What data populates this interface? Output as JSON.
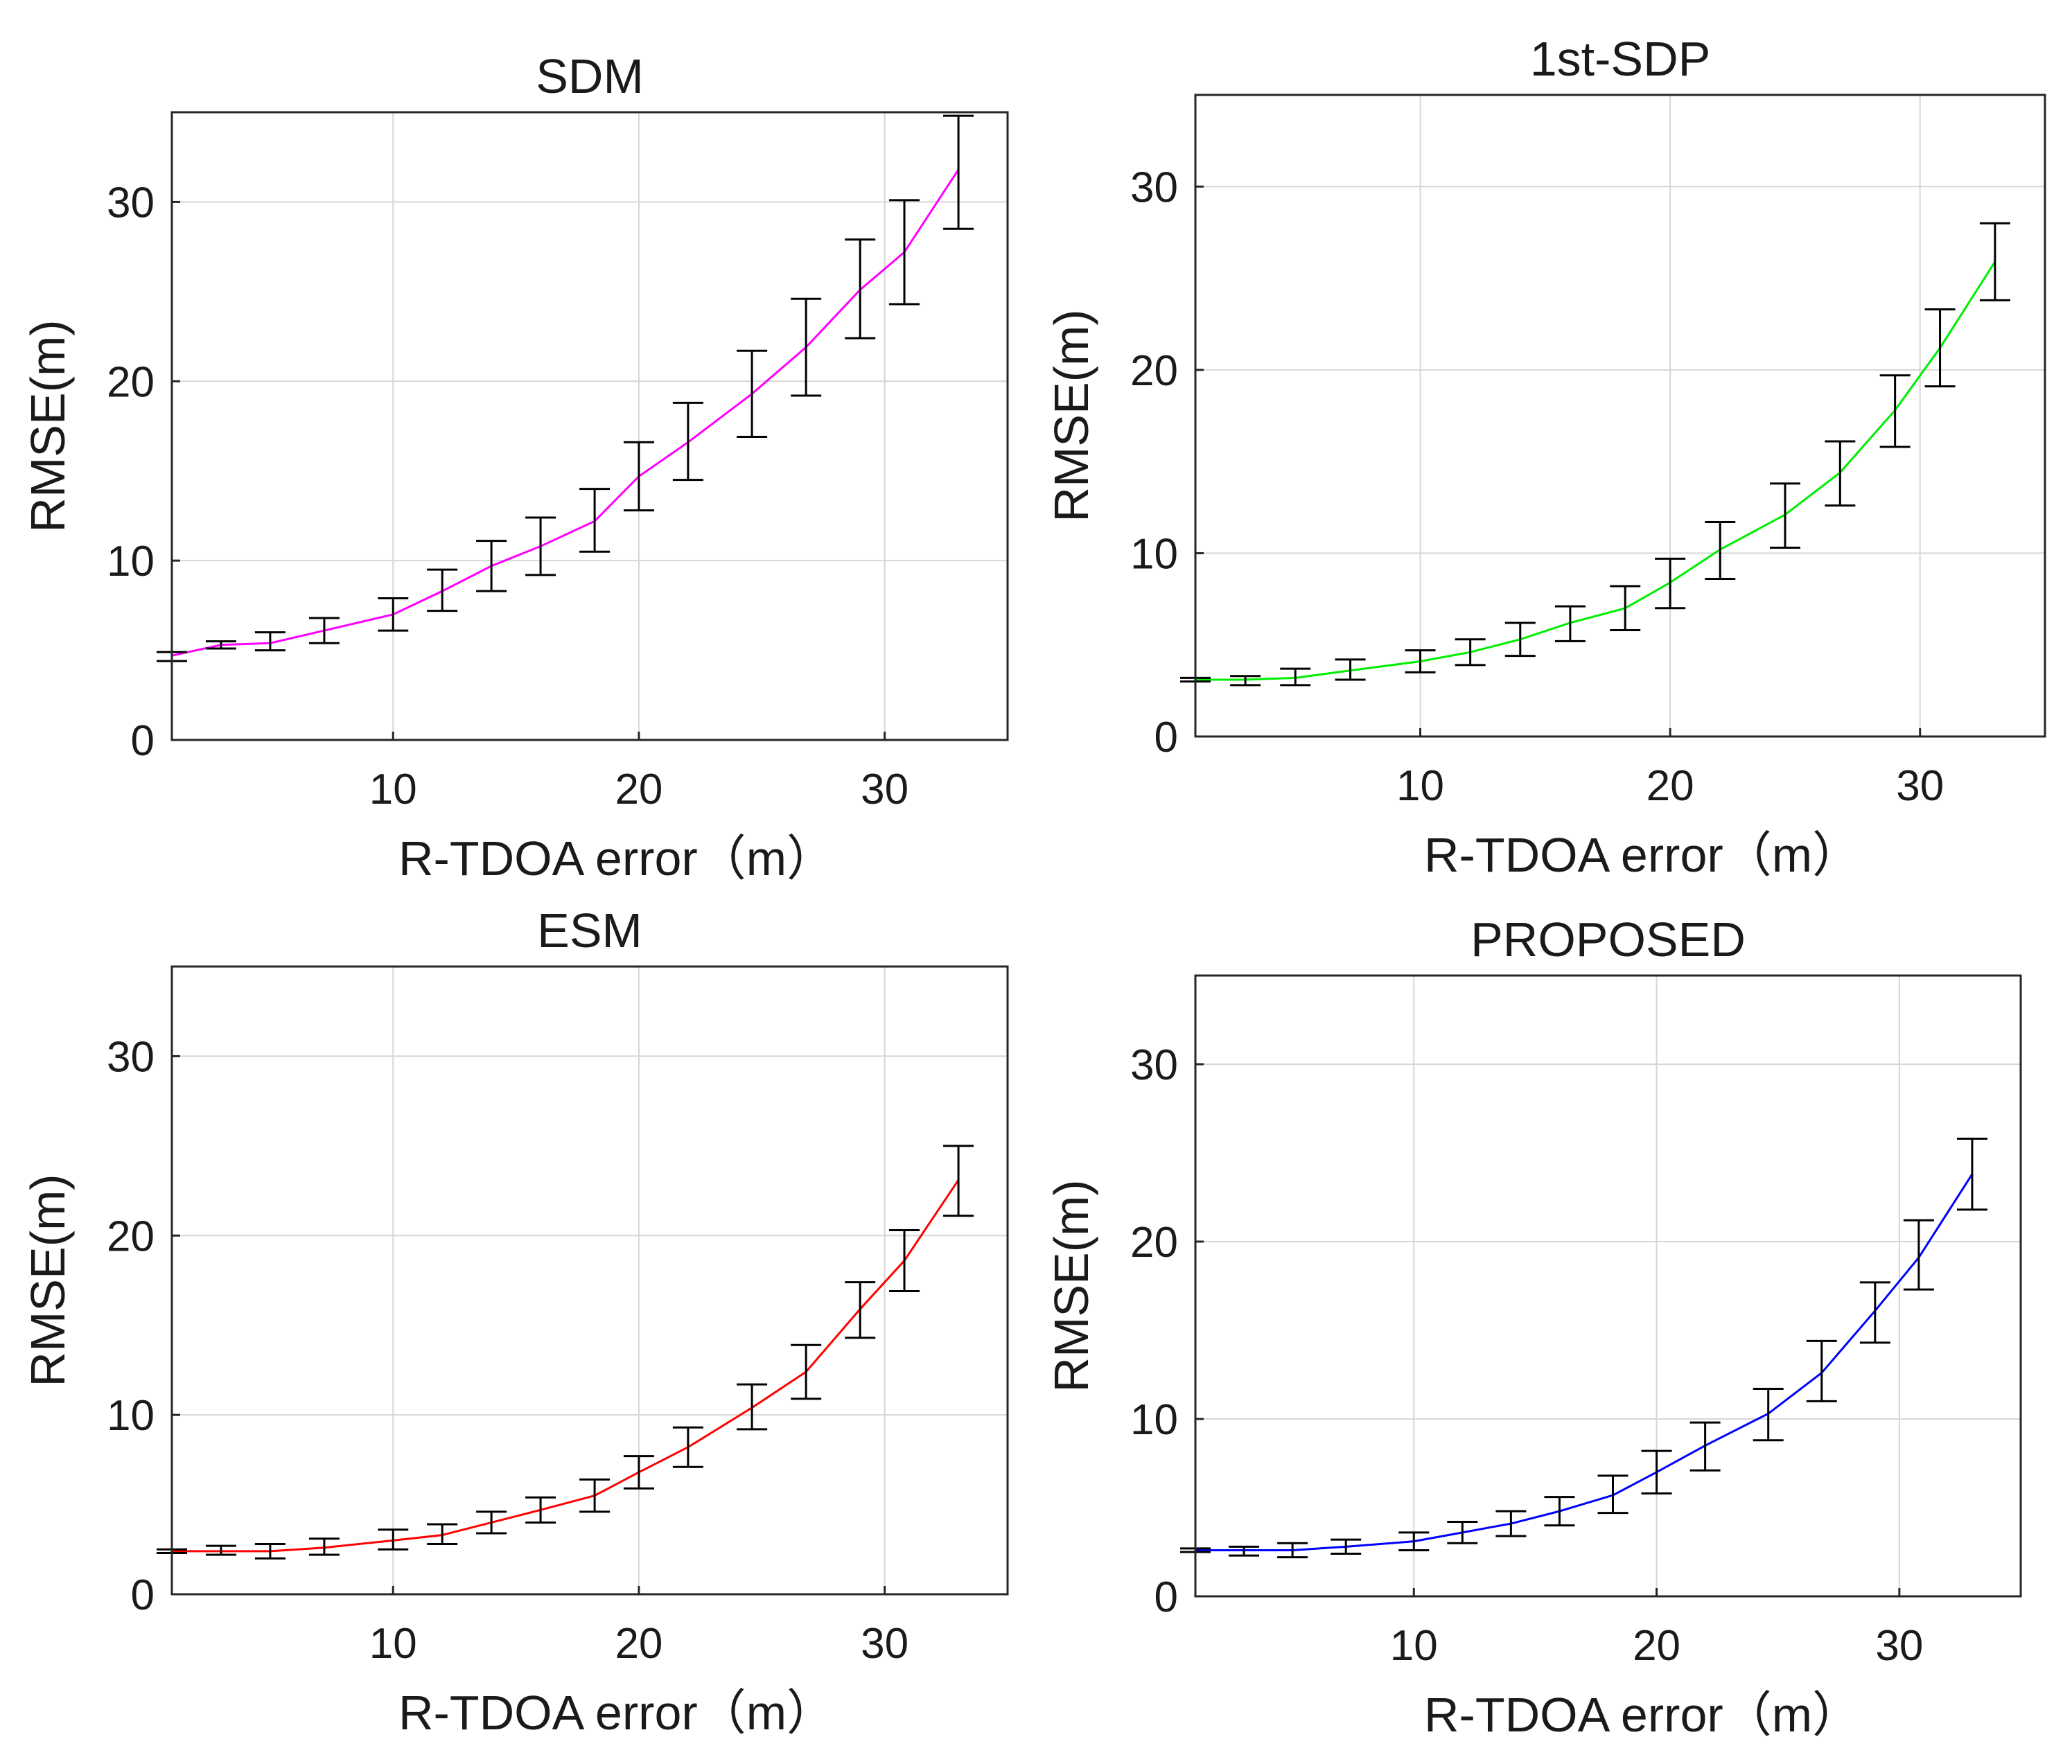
{
  "chart_data": [
    {
      "type": "line",
      "title": "SDM",
      "xlabel": "R-TDOA error（m）",
      "ylabel": "RMSE(m)",
      "xlim": [
        1,
        35
      ],
      "ylim": [
        0,
        35
      ],
      "xticks": [
        10,
        20,
        30
      ],
      "yticks": [
        0,
        10,
        20,
        30
      ],
      "grid": true,
      "color": "#ff00ff",
      "series": [
        {
          "name": "SDM",
          "x": [
            1,
            3,
            5,
            7.2,
            10,
            12,
            14,
            16,
            18.2,
            20,
            22,
            24.6,
            26.8,
            29,
            30.8,
            33
          ],
          "y": [
            4.7,
            5.3,
            5.4,
            6.1,
            7.0,
            8.3,
            9.7,
            10.8,
            12.2,
            14.7,
            16.6,
            19.3,
            21.9,
            25.1,
            27.2,
            31.8
          ],
          "err_low": [
            4.4,
            5.1,
            5.0,
            5.4,
            6.1,
            7.2,
            8.3,
            9.2,
            10.5,
            12.8,
            14.5,
            16.9,
            19.2,
            22.4,
            24.3,
            28.5
          ],
          "err_high": [
            4.9,
            5.5,
            6.0,
            6.8,
            7.9,
            9.5,
            11.1,
            12.4,
            14.0,
            16.6,
            18.8,
            21.7,
            24.6,
            27.9,
            30.1,
            34.8
          ]
        }
      ]
    },
    {
      "type": "line",
      "title": "1st-SDP",
      "xlabel": "R-TDOA error（m）",
      "ylabel": "RMSE(m)",
      "xlim": [
        1,
        35
      ],
      "ylim": [
        0,
        35
      ],
      "xticks": [
        10,
        20,
        30
      ],
      "yticks": [
        0,
        10,
        20,
        30
      ],
      "grid": true,
      "color": "#00ee00",
      "series": [
        {
          "name": "1st-SDP",
          "x": [
            1,
            3,
            5,
            7.2,
            10,
            12,
            14,
            16,
            18.2,
            20,
            22,
            24.6,
            26.8,
            29,
            30.8,
            33
          ],
          "y": [
            3.1,
            3.1,
            3.2,
            3.6,
            4.1,
            4.6,
            5.3,
            6.2,
            7.0,
            8.4,
            10.2,
            12.1,
            14.4,
            17.8,
            21.2,
            25.9
          ],
          "err_low": [
            3.0,
            2.8,
            2.8,
            3.1,
            3.5,
            3.9,
            4.4,
            5.2,
            5.8,
            7.0,
            8.6,
            10.3,
            12.6,
            15.8,
            19.1,
            23.8
          ],
          "err_high": [
            3.2,
            3.3,
            3.7,
            4.2,
            4.7,
            5.3,
            6.2,
            7.1,
            8.2,
            9.7,
            11.7,
            13.8,
            16.1,
            19.7,
            23.3,
            28.0
          ]
        }
      ]
    },
    {
      "type": "line",
      "title": "ESM",
      "xlabel": "R-TDOA error（m）",
      "ylabel": "RMSE(m)",
      "xlim": [
        1,
        35
      ],
      "ylim": [
        0,
        35
      ],
      "xticks": [
        10,
        20,
        30
      ],
      "yticks": [
        0,
        10,
        20,
        30
      ],
      "grid": true,
      "color": "#ff0000",
      "series": [
        {
          "name": "ESM",
          "x": [
            1,
            3,
            5,
            7.2,
            10,
            12,
            14,
            16,
            18.2,
            20,
            22,
            24.6,
            26.8,
            29,
            30.8,
            33
          ],
          "y": [
            2.4,
            2.4,
            2.4,
            2.6,
            3.0,
            3.3,
            4.0,
            4.7,
            5.5,
            6.8,
            8.2,
            10.4,
            12.4,
            15.9,
            18.6,
            23.1
          ],
          "err_low": [
            2.3,
            2.2,
            2.0,
            2.2,
            2.5,
            2.8,
            3.4,
            4.0,
            4.6,
            5.9,
            7.1,
            9.2,
            10.9,
            14.3,
            16.9,
            21.1
          ],
          "err_high": [
            2.5,
            2.7,
            2.8,
            3.1,
            3.6,
            3.9,
            4.6,
            5.4,
            6.4,
            7.7,
            9.3,
            11.7,
            13.9,
            17.4,
            20.3,
            25.0
          ]
        }
      ]
    },
    {
      "type": "line",
      "title": "PROPOSED",
      "xlabel": "R-TDOA error（m）",
      "ylabel": "RMSE(m)",
      "xlim": [
        1,
        35
      ],
      "ylim": [
        0,
        35
      ],
      "xticks": [
        10,
        20,
        30
      ],
      "yticks": [
        0,
        10,
        20,
        30
      ],
      "grid": true,
      "color": "#0000ff",
      "series": [
        {
          "name": "PROPOSED",
          "x": [
            1,
            3,
            5,
            7.2,
            10,
            12,
            14,
            16,
            18.2,
            20,
            22,
            24.6,
            26.8,
            29,
            30.8,
            33
          ],
          "y": [
            2.6,
            2.6,
            2.6,
            2.8,
            3.1,
            3.6,
            4.1,
            4.8,
            5.7,
            7.0,
            8.5,
            10.3,
            12.6,
            16.1,
            19.1,
            23.8
          ],
          "err_low": [
            2.5,
            2.3,
            2.2,
            2.4,
            2.6,
            3.0,
            3.4,
            4.0,
            4.7,
            5.8,
            7.1,
            8.8,
            11.0,
            14.3,
            17.3,
            21.8
          ],
          "err_high": [
            2.7,
            2.8,
            3.0,
            3.2,
            3.6,
            4.2,
            4.8,
            5.6,
            6.8,
            8.2,
            9.8,
            11.7,
            14.4,
            17.7,
            21.2,
            25.8
          ]
        }
      ]
    }
  ]
}
